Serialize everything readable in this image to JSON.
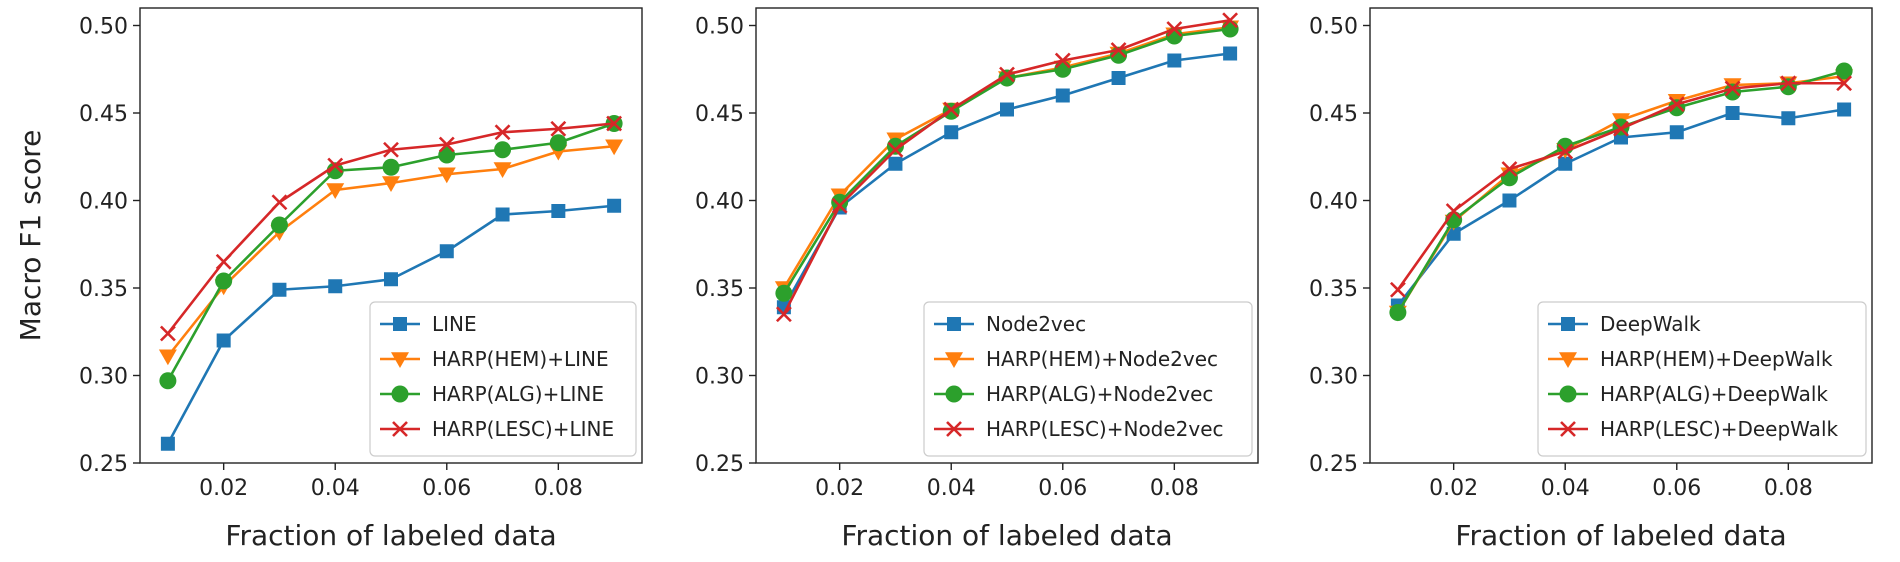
{
  "chart_data": [
    {
      "type": "line",
      "xlabel": "Fraction of labeled data",
      "ylabel": "Macro F1 score",
      "xlim": [
        0.005,
        0.095
      ],
      "ylim": [
        0.25,
        0.51
      ],
      "xticks": [
        0.02,
        0.04,
        0.06,
        0.08
      ],
      "xtick_labels": [
        "0.02",
        "0.04",
        "0.06",
        "0.08"
      ],
      "yticks": [
        0.25,
        0.3,
        0.35,
        0.4,
        0.45,
        0.5
      ],
      "ytick_labels": [
        "0.25",
        "0.30",
        "0.35",
        "0.40",
        "0.45",
        "0.50"
      ],
      "grid": false,
      "legend_position": "lower-right",
      "x": [
        0.01,
        0.02,
        0.03,
        0.04,
        0.05,
        0.06,
        0.07,
        0.08,
        0.09
      ],
      "series": [
        {
          "name": "LINE",
          "color": "#1f77b4",
          "marker": "square",
          "values": [
            0.261,
            0.32,
            0.349,
            0.351,
            0.355,
            0.371,
            0.392,
            0.394,
            0.397
          ]
        },
        {
          "name": "HARP(HEM)+LINE",
          "color": "#ff7f0e",
          "marker": "triangle-down",
          "values": [
            0.311,
            0.351,
            0.382,
            0.406,
            0.41,
            0.415,
            0.418,
            0.428,
            0.431
          ]
        },
        {
          "name": "HARP(ALG)+LINE",
          "color": "#2ca02c",
          "marker": "circle",
          "values": [
            0.297,
            0.354,
            0.386,
            0.417,
            0.419,
            0.426,
            0.429,
            0.433,
            0.444
          ]
        },
        {
          "name": "HARP(LESC)+LINE",
          "color": "#d62728",
          "marker": "x",
          "values": [
            0.324,
            0.365,
            0.399,
            0.42,
            0.429,
            0.432,
            0.439,
            0.441,
            0.444
          ]
        }
      ]
    },
    {
      "type": "line",
      "xlabel": "Fraction of labeled data",
      "ylabel": "",
      "xlim": [
        0.005,
        0.095
      ],
      "ylim": [
        0.25,
        0.51
      ],
      "xticks": [
        0.02,
        0.04,
        0.06,
        0.08
      ],
      "xtick_labels": [
        "0.02",
        "0.04",
        "0.06",
        "0.08"
      ],
      "yticks": [
        0.25,
        0.3,
        0.35,
        0.4,
        0.45,
        0.5
      ],
      "ytick_labels": [
        "0.25",
        "0.30",
        "0.35",
        "0.40",
        "0.45",
        "0.50"
      ],
      "grid": false,
      "legend_position": "lower-right",
      "x": [
        0.01,
        0.02,
        0.03,
        0.04,
        0.05,
        0.06,
        0.07,
        0.08,
        0.09
      ],
      "series": [
        {
          "name": "Node2vec",
          "color": "#1f77b4",
          "marker": "square",
          "values": [
            0.339,
            0.396,
            0.421,
            0.439,
            0.452,
            0.46,
            0.47,
            0.48,
            0.484
          ]
        },
        {
          "name": "HARP(HEM)+Node2vec",
          "color": "#ff7f0e",
          "marker": "triangle-down",
          "values": [
            0.35,
            0.403,
            0.435,
            0.452,
            0.47,
            0.476,
            0.484,
            0.495,
            0.499
          ]
        },
        {
          "name": "HARP(ALG)+Node2vec",
          "color": "#2ca02c",
          "marker": "circle",
          "values": [
            0.347,
            0.399,
            0.431,
            0.451,
            0.47,
            0.475,
            0.483,
            0.494,
            0.498
          ]
        },
        {
          "name": "HARP(LESC)+Node2vec",
          "color": "#d62728",
          "marker": "x",
          "values": [
            0.335,
            0.397,
            0.429,
            0.452,
            0.472,
            0.48,
            0.486,
            0.498,
            0.503
          ]
        }
      ]
    },
    {
      "type": "line",
      "xlabel": "Fraction of labeled data",
      "ylabel": "",
      "xlim": [
        0.005,
        0.095
      ],
      "ylim": [
        0.25,
        0.51
      ],
      "xticks": [
        0.02,
        0.04,
        0.06,
        0.08
      ],
      "xtick_labels": [
        "0.02",
        "0.04",
        "0.06",
        "0.08"
      ],
      "yticks": [
        0.25,
        0.3,
        0.35,
        0.4,
        0.45,
        0.5
      ],
      "ytick_labels": [
        "0.25",
        "0.30",
        "0.35",
        "0.40",
        "0.45",
        "0.50"
      ],
      "grid": false,
      "legend_position": "lower-right",
      "x": [
        0.01,
        0.02,
        0.03,
        0.04,
        0.05,
        0.06,
        0.07,
        0.08,
        0.09
      ],
      "series": [
        {
          "name": "DeepWalk",
          "color": "#1f77b4",
          "marker": "square",
          "values": [
            0.34,
            0.381,
            0.4,
            0.421,
            0.436,
            0.439,
            0.45,
            0.447,
            0.452
          ]
        },
        {
          "name": "HARP(HEM)+DeepWalk",
          "color": "#ff7f0e",
          "marker": "triangle-down",
          "values": [
            0.336,
            0.388,
            0.415,
            0.429,
            0.446,
            0.457,
            0.466,
            0.467,
            0.471
          ]
        },
        {
          "name": "HARP(ALG)+DeepWalk",
          "color": "#2ca02c",
          "marker": "circle",
          "values": [
            0.336,
            0.389,
            0.413,
            0.431,
            0.442,
            0.453,
            0.462,
            0.465,
            0.474
          ]
        },
        {
          "name": "HARP(LESC)+DeepWalk",
          "color": "#d62728",
          "marker": "x",
          "values": [
            0.349,
            0.394,
            0.418,
            0.428,
            0.441,
            0.455,
            0.464,
            0.467,
            0.467
          ]
        }
      ]
    }
  ]
}
